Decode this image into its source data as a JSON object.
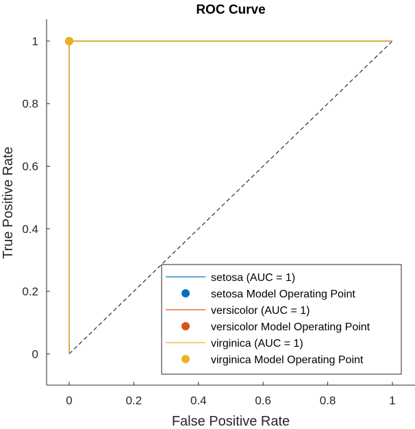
{
  "chart_data": {
    "type": "line",
    "title": "ROC Curve",
    "xlabel": "False Positive Rate",
    "ylabel": "True Positive Rate",
    "xlim": [
      -0.07,
      1.07
    ],
    "ylim": [
      -0.1,
      1.07
    ],
    "x_ticks": [
      0,
      0.2,
      0.4,
      0.6,
      0.8,
      1
    ],
    "y_ticks": [
      0,
      0.2,
      0.4,
      0.6,
      0.8,
      1
    ],
    "x_tick_labels": [
      "0",
      "0.2",
      "0.4",
      "0.6",
      "0.8",
      "1"
    ],
    "y_tick_labels": [
      "0",
      "0.2",
      "0.4",
      "0.6",
      "0.8",
      "1"
    ],
    "grid": false,
    "legend_position": "bottom-right",
    "reference_line": {
      "x": [
        0,
        1
      ],
      "y": [
        0,
        1
      ],
      "style": "dashed",
      "color": "#000000"
    },
    "series": [
      {
        "name": "setosa (AUC = 1)",
        "color": "#0072BD",
        "x": [
          0,
          0,
          1
        ],
        "y": [
          0,
          1,
          1
        ]
      },
      {
        "name": "versicolor (AUC = 1)",
        "color": "#D95319",
        "x": [
          0,
          0,
          1
        ],
        "y": [
          0,
          1,
          1
        ]
      },
      {
        "name": "virginica (AUC = 1)",
        "color": "#EDB120",
        "x": [
          0,
          0,
          1
        ],
        "y": [
          0,
          1,
          1
        ]
      }
    ],
    "operating_points": [
      {
        "name": "setosa Model Operating Point",
        "color": "#0072BD",
        "x": 0,
        "y": 1
      },
      {
        "name": "versicolor Model Operating Point",
        "color": "#D95319",
        "x": 0,
        "y": 1
      },
      {
        "name": "virginica Model Operating Point",
        "color": "#EDB120",
        "x": 0,
        "y": 1
      }
    ]
  }
}
